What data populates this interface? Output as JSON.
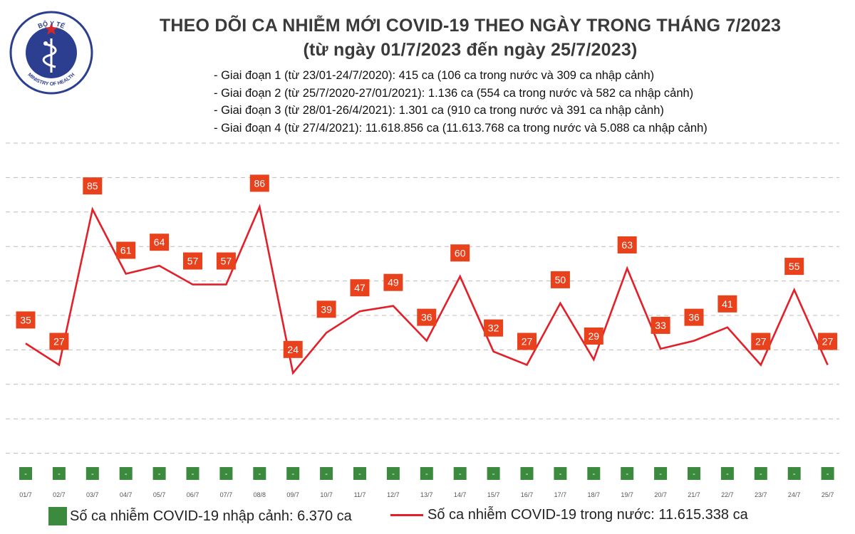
{
  "header": {
    "title": "THEO DÕI CA NHIỄM MỚI COVID-19 THEO NGÀY TRONG THÁNG 7/2023",
    "subtitle": "(từ ngày 01/7/2023 đến ngày 25/7/2023)"
  },
  "logo": {
    "top_text": "BỘ Y TẾ",
    "bottom_text": "MINISTRY OF HEALTH"
  },
  "notes": [
    "- Giai đoạn 1 (từ 23/01-24/7/2020): 415 ca (106 ca trong nước và 309 ca nhập cảnh)",
    "- Giai đoạn 2 (từ 25/7/2020-27/01/2021): 1.136 ca (554 ca trong nước và 582 ca nhập cảnh)",
    "- Giai đoạn 3 (từ 28/01-26/4/2021): 1.301 ca (910 ca trong nước và 391 ca nhập cảnh)",
    "- Giai đoạn 4 (từ 27/4/2021): 11.618.856 ca (11.613.768 ca trong nước và 5.088 ca nhập cảnh)"
  ],
  "legend": {
    "imported": "Số ca nhiễm COVID-19 nhập cảnh: 6.370 ca",
    "domestic": "Số ca nhiễm COVID-19 trong nước: 11.615.338 ca"
  },
  "colors": {
    "domestic_line": "#e3202a",
    "domestic_label_bg": "#e8411c",
    "imported_bar": "#3b8a3e",
    "title": "#3a3a3a",
    "logo_blue": "#2c3e8f"
  },
  "chart_data": {
    "type": "line",
    "categories": [
      "01/7",
      "02/7",
      "03/7",
      "04/7",
      "05/7",
      "06/7",
      "07/7",
      "08/8",
      "09/7",
      "10/7",
      "11/7",
      "12/7",
      "13/7",
      "14/7",
      "15/7",
      "16/7",
      "17/7",
      "18/7",
      "19/7",
      "20/7",
      "21/7",
      "22/7",
      "23/7",
      "24/7",
      "25/7"
    ],
    "series": [
      {
        "name": "Số ca nhiễm COVID-19 trong nước",
        "type": "line",
        "values": [
          35,
          27,
          85,
          61,
          64,
          57,
          57,
          86,
          24,
          39,
          47,
          49,
          36,
          60,
          32,
          27,
          50,
          29,
          63,
          33,
          36,
          41,
          27,
          55,
          27
        ]
      },
      {
        "name": "Số ca nhiễm COVID-19 nhập cảnh",
        "type": "bar",
        "labels": [
          "-",
          "-",
          "-",
          "-",
          "-",
          "-",
          "-",
          "-",
          "-",
          "-",
          "-",
          "-",
          "-",
          "-",
          "-",
          "-",
          "-",
          "-",
          "-",
          "-",
          "-",
          "-",
          "-",
          "-",
          "-"
        ]
      }
    ],
    "ylim": [
      -5,
      110
    ],
    "grid": true,
    "legend_position": "bottom"
  }
}
